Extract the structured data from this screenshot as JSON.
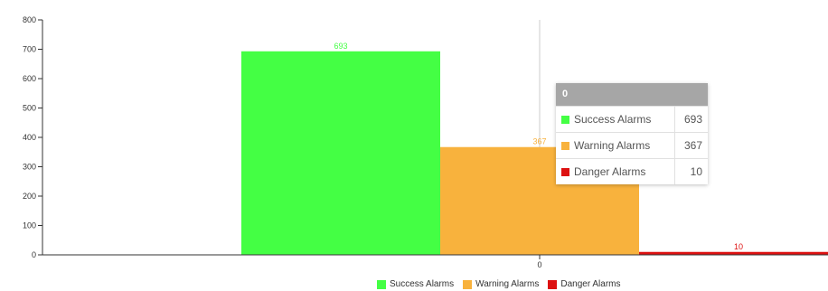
{
  "chart_data": {
    "type": "bar",
    "categories": [
      "0"
    ],
    "series": [
      {
        "name": "Success Alarms",
        "values": [
          693
        ],
        "color": "#44ff44"
      },
      {
        "name": "Warning Alarms",
        "values": [
          367
        ],
        "color": "#f8b23d"
      },
      {
        "name": "Danger Alarms",
        "values": [
          10
        ],
        "color": "#dd1111"
      }
    ],
    "ylim": [
      0,
      800
    ],
    "yticks": [
      0,
      100,
      200,
      300,
      400,
      500,
      600,
      700,
      800
    ],
    "grid": false,
    "legend": "bottom-center"
  },
  "tooltip": {
    "title": "0",
    "rows": [
      {
        "label": "Success Alarms",
        "value": "693",
        "color": "#44ff44"
      },
      {
        "label": "Warning Alarms",
        "value": "367",
        "color": "#f8b23d"
      },
      {
        "label": "Danger Alarms",
        "value": "10",
        "color": "#dd1111"
      }
    ]
  },
  "legend": {
    "items": [
      {
        "label": "Success Alarms",
        "color": "#44ff44"
      },
      {
        "label": "Warning Alarms",
        "color": "#f8b23d"
      },
      {
        "label": "Danger Alarms",
        "color": "#dd1111"
      }
    ]
  }
}
